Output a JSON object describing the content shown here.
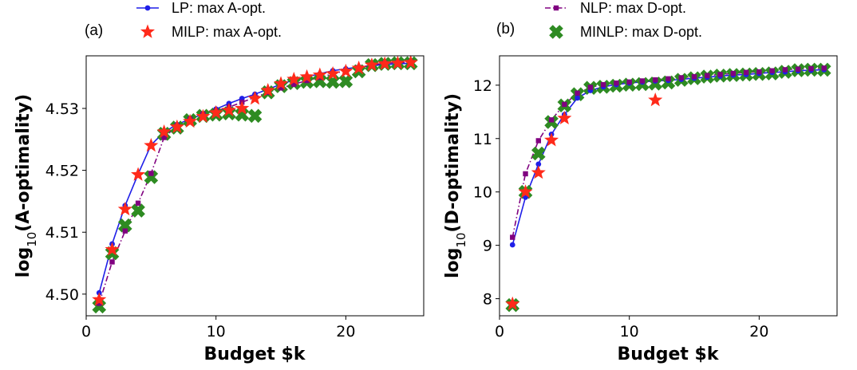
{
  "chart_data": [
    {
      "type": "line",
      "panel_label": "(a)",
      "xlabel": "Budget $k",
      "ylabel_main": "log",
      "ylabel_sub": "10",
      "ylabel_rest": "(A-optimality)",
      "xlim": [
        0,
        26
      ],
      "ylim": [
        4.4965,
        4.5385
      ],
      "xticks": [
        0,
        10,
        20
      ],
      "xtick_labels": [
        "0",
        "10",
        "20"
      ],
      "yticks": [
        4.5,
        4.51,
        4.52,
        4.53
      ],
      "ytick_labels": [
        "4.50",
        "4.51",
        "4.52",
        "4.53"
      ],
      "legend_position": "top-center",
      "series": [
        {
          "name": "LP: max A-opt.",
          "style": "line-dot",
          "color": "#1f1fe8",
          "x": [
            1,
            2,
            3,
            4,
            5,
            6,
            7,
            8,
            9,
            10,
            11,
            12,
            13,
            14,
            15,
            16,
            17,
            18,
            19,
            20,
            21,
            22,
            23,
            24,
            25
          ],
          "y": [
            4.5002,
            4.5081,
            4.5143,
            4.5194,
            4.5241,
            4.5262,
            4.5274,
            4.5283,
            4.5291,
            4.5299,
            4.5308,
            4.5316,
            4.5323,
            4.5331,
            4.5339,
            4.5346,
            4.5351,
            4.5356,
            4.5361,
            4.5364,
            4.5367,
            4.5369,
            4.5371,
            4.5372,
            4.5373
          ]
        },
        {
          "name": "MILP: max A-opt.",
          "style": "star",
          "color": "#ff2a1a",
          "x": [
            1,
            2,
            3,
            4,
            5,
            6,
            7,
            8,
            9,
            10,
            11,
            12,
            13,
            14,
            15,
            16,
            17,
            18,
            19,
            20,
            21,
            22,
            23,
            24,
            25
          ],
          "y": [
            4.4991,
            4.5072,
            4.5137,
            4.5193,
            4.524,
            4.5262,
            4.527,
            4.5279,
            4.5287,
            4.5293,
            4.5297,
            4.53,
            4.5316,
            4.5329,
            4.534,
            4.5347,
            4.5351,
            4.5354,
            4.5356,
            4.536,
            4.5365,
            4.537,
            4.5372,
            4.5373,
            4.5374
          ]
        },
        {
          "name": "NLP: max D-opt.",
          "style": "dashdot-square",
          "color": "#800080",
          "x": [
            1,
            2,
            3,
            4,
            5,
            6,
            7,
            8,
            9,
            10,
            11,
            12,
            13,
            14,
            15,
            16,
            17,
            18,
            19,
            20,
            21,
            22,
            23,
            24,
            25
          ],
          "y": [
            4.4985,
            4.5052,
            4.5102,
            4.5147,
            4.5195,
            4.5253,
            4.5272,
            4.5283,
            4.5291,
            4.5296,
            4.5302,
            4.531,
            4.5318,
            4.5326,
            4.5333,
            4.5339,
            4.5345,
            4.535,
            4.5356,
            4.5361,
            4.5366,
            4.537,
            4.5373,
            4.5374,
            4.5375
          ]
        },
        {
          "name": "MINLP: max D-opt.",
          "style": "x",
          "color": "#2e8b22",
          "x": [
            1,
            2,
            3,
            4,
            5,
            6,
            7,
            8,
            9,
            10,
            11,
            12,
            13,
            14,
            15,
            16,
            17,
            18,
            19,
            20,
            21,
            22,
            23,
            24,
            25
          ],
          "y": [
            4.498,
            4.5066,
            4.5111,
            4.5135,
            4.5189,
            4.5259,
            4.5269,
            4.5281,
            4.5288,
            4.529,
            4.5292,
            4.529,
            4.5288,
            4.5326,
            4.5336,
            4.5341,
            4.5343,
            4.5344,
            4.5343,
            4.5344,
            4.536,
            4.537,
            4.5372,
            4.5373,
            4.5373
          ]
        }
      ]
    },
    {
      "type": "line",
      "panel_label": "(b)",
      "xlabel": "Budget $k",
      "ylabel_main": "log",
      "ylabel_sub": "10",
      "ylabel_rest": "(D-optimality)",
      "xlim": [
        0,
        26
      ],
      "ylim": [
        7.68,
        12.55
      ],
      "xticks": [
        0,
        10,
        20
      ],
      "xtick_labels": [
        "0",
        "10",
        "20"
      ],
      "yticks": [
        8,
        9,
        10,
        11,
        12
      ],
      "ytick_labels": [
        "8",
        "9",
        "10",
        "11",
        "12"
      ],
      "legend_position": "top-center",
      "series": [
        {
          "name": "LP: max A-opt.",
          "style": "line-dot",
          "color": "#1f1fe8",
          "x": [
            1,
            2,
            3,
            4,
            5,
            6,
            7,
            8,
            9,
            10,
            11,
            12,
            13,
            14,
            15,
            16,
            17,
            18,
            19,
            20,
            21,
            22,
            23,
            24,
            25
          ],
          "y": [
            9.01,
            9.9,
            10.52,
            11.08,
            11.45,
            11.76,
            11.9,
            11.97,
            12.01,
            12.04,
            12.06,
            12.08,
            12.09,
            12.11,
            12.13,
            12.15,
            12.17,
            12.19,
            12.2,
            12.22,
            12.24,
            12.25,
            12.27,
            12.28,
            12.29
          ]
        },
        {
          "name": "MILP: max A-opt.",
          "style": "star",
          "color": "#ff2a1a",
          "x": [
            1,
            2,
            3,
            4,
            5,
            12
          ],
          "y": [
            7.9,
            10.0,
            10.36,
            10.97,
            11.38,
            11.72
          ]
        },
        {
          "name": "NLP: max D-opt.",
          "style": "dashdot-square",
          "color": "#800080",
          "x": [
            1,
            2,
            3,
            4,
            5,
            6,
            7,
            8,
            9,
            10,
            11,
            12,
            13,
            14,
            15,
            16,
            17,
            18,
            19,
            20,
            21,
            22,
            23,
            24,
            25
          ],
          "y": [
            9.15,
            10.34,
            10.96,
            11.35,
            11.64,
            11.85,
            11.96,
            12.01,
            12.04,
            12.06,
            12.08,
            12.1,
            12.12,
            12.14,
            12.16,
            12.18,
            12.2,
            12.22,
            12.24,
            12.25,
            12.27,
            12.29,
            12.3,
            12.31,
            12.32
          ]
        },
        {
          "name": "MINLP: max D-opt.",
          "style": "x",
          "color": "#2e8b22",
          "x": [
            1,
            2,
            3,
            4,
            5,
            6,
            7,
            8,
            9,
            10,
            11,
            12,
            13,
            14,
            15,
            16,
            17,
            18,
            19,
            20,
            21,
            22,
            23,
            24,
            25
          ],
          "y": [
            7.88,
            10.0,
            10.72,
            11.31,
            11.62,
            11.83,
            11.95,
            11.97,
            11.99,
            12.01,
            12.02,
            12.03,
            12.05,
            12.1,
            12.13,
            12.16,
            12.18,
            12.19,
            12.2,
            12.21,
            12.22,
            12.25,
            12.28,
            12.29,
            12.29
          ]
        }
      ]
    }
  ]
}
